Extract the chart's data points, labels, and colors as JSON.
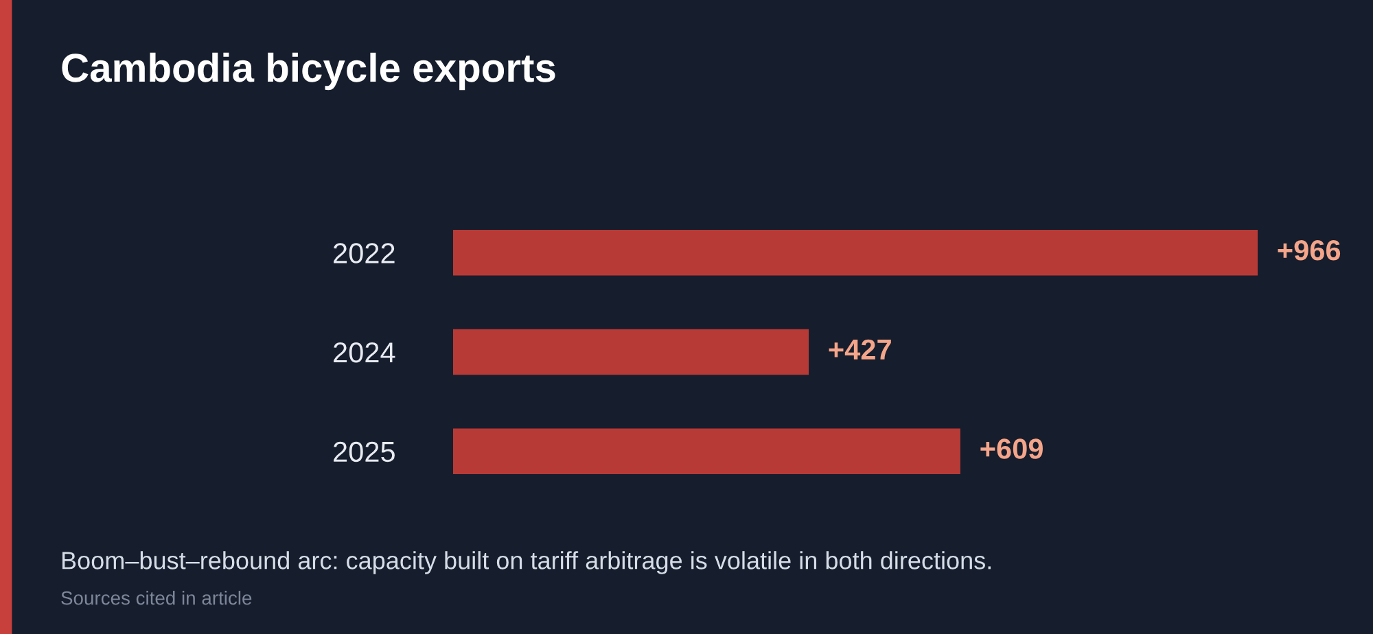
{
  "chart_data": {
    "type": "bar",
    "orientation": "horizontal",
    "title": "Cambodia bicycle exports",
    "categories": [
      "2022",
      "2024",
      "2025"
    ],
    "values": [
      966,
      427,
      609
    ],
    "value_labels": [
      "+966",
      "+427",
      "+609"
    ],
    "color": "#b83a36",
    "grid": false,
    "legend": false,
    "annotations": [
      "Boom–bust–rebound arc: capacity built on tariff arbitrage is volatile in both directions.",
      "Sources cited in article"
    ]
  }
}
